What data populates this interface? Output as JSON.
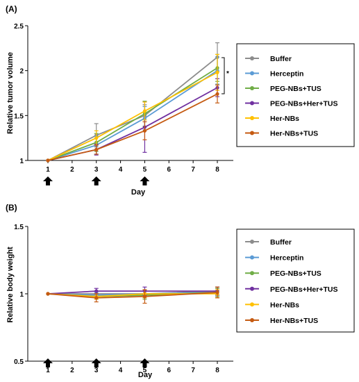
{
  "chart_data": [
    {
      "type": "line",
      "panel_label": "(A)",
      "xlabel": "Day",
      "ylabel": "Relative tumor volume",
      "x": [
        1,
        3,
        5,
        8
      ],
      "xticks": [
        1,
        2,
        3,
        4,
        5,
        6,
        7,
        8
      ],
      "yticks": [
        "1",
        "1.5",
        "2",
        "2.5"
      ],
      "ylim": [
        1,
        2.5
      ],
      "arrows_at": [
        1,
        3,
        5
      ],
      "significance_mark": "*",
      "legend_position": "right",
      "grid": false,
      "series": [
        {
          "name": "Buffer",
          "color": "#8c8c8c",
          "values": [
            1,
            1.28,
            1.5,
            2.15
          ],
          "errors": [
            0,
            0.13,
            0.12,
            0.16
          ]
        },
        {
          "name": "Herceptin",
          "color": "#5b9bd5",
          "values": [
            1,
            1.17,
            1.47,
            2.0
          ],
          "errors": [
            0,
            0.1,
            0.13,
            0.15
          ]
        },
        {
          "name": "PEG-NBs+TUS",
          "color": "#70ad47",
          "values": [
            1,
            1.2,
            1.52,
            2.03
          ],
          "errors": [
            0,
            0.1,
            0.14,
            0.15
          ]
        },
        {
          "name": "PEG-NBs+Her+TUS",
          "color": "#7030a0",
          "values": [
            1,
            1.12,
            1.37,
            1.81
          ],
          "errors": [
            0,
            0.06,
            0.28,
            0.1
          ]
        },
        {
          "name": "Her-NBs",
          "color": "#ffc000",
          "values": [
            1,
            1.25,
            1.55,
            1.98
          ],
          "errors": [
            0,
            0.08,
            0.1,
            0.2
          ]
        },
        {
          "name": "Her-NBs+TUS",
          "color": "#c55a11",
          "values": [
            1,
            1.12,
            1.33,
            1.74
          ],
          "errors": [
            0,
            0.05,
            0.1,
            0.1
          ]
        }
      ]
    },
    {
      "type": "line",
      "panel_label": "(B)",
      "xlabel": "Day",
      "ylabel": "Relative body weight",
      "x": [
        1,
        3,
        5,
        8
      ],
      "xticks": [
        1,
        2,
        3,
        4,
        5,
        6,
        7,
        8
      ],
      "yticks": [
        "0.5",
        "1",
        "1.5"
      ],
      "ylim": [
        0.5,
        1.5
      ],
      "arrows_at": [
        1,
        3,
        5
      ],
      "legend_position": "right",
      "grid": false,
      "series": [
        {
          "name": "Buffer",
          "color": "#8c8c8c",
          "values": [
            1,
            1.0,
            1.0,
            1.02
          ],
          "errors": [
            0,
            0.02,
            0.03,
            0.03
          ]
        },
        {
          "name": "Herceptin",
          "color": "#5b9bd5",
          "values": [
            1,
            0.99,
            1.0,
            1.01
          ],
          "errors": [
            0,
            0.02,
            0.03,
            0.03
          ]
        },
        {
          "name": "PEG-NBs+TUS",
          "color": "#70ad47",
          "values": [
            1,
            0.98,
            0.99,
            1.01
          ],
          "errors": [
            0,
            0.02,
            0.03,
            0.03
          ]
        },
        {
          "name": "PEG-NBs+Her+TUS",
          "color": "#7030a0",
          "values": [
            1,
            1.02,
            1.02,
            1.02
          ],
          "errors": [
            0,
            0.02,
            0.03,
            0.03
          ]
        },
        {
          "name": "Her-NBs",
          "color": "#ffc000",
          "values": [
            1,
            0.98,
            1.0,
            1.0
          ],
          "errors": [
            0,
            0.02,
            0.03,
            0.03
          ]
        },
        {
          "name": "Her-NBs+TUS",
          "color": "#c55a11",
          "values": [
            1,
            0.97,
            0.98,
            1.01
          ],
          "errors": [
            0,
            0.03,
            0.05,
            0.04
          ]
        }
      ]
    }
  ]
}
